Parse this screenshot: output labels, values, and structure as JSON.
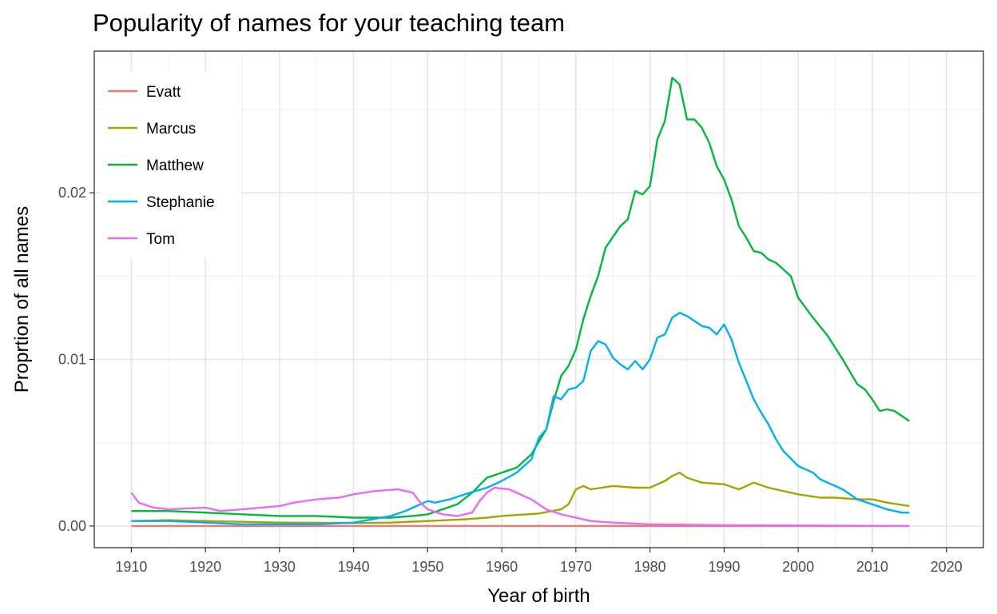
{
  "chart_data": {
    "type": "line",
    "title": "Popularity of names for your teaching team",
    "xlabel": "Year of birth",
    "ylabel": "Proprtion of all names",
    "xlim": [
      1905,
      2025
    ],
    "ylim": [
      -0.0013,
      0.0285
    ],
    "x_ticks": [
      1910,
      1920,
      1930,
      1940,
      1950,
      1960,
      1970,
      1980,
      1990,
      2000,
      2010,
      2020
    ],
    "y_ticks": [
      0.0,
      0.01,
      0.02
    ],
    "y_tick_labels": [
      "0.00",
      "0.01",
      "0.02"
    ],
    "grid": true,
    "legend_position": "top-left",
    "series": [
      {
        "name": "Evatt",
        "color": "#F8766D",
        "points": [
          [
            1910,
            0.0
          ],
          [
            2015,
            0.0
          ]
        ]
      },
      {
        "name": "Marcus",
        "color": "#A3A500",
        "points": [
          [
            1910,
            0.0003
          ],
          [
            1915,
            0.00035
          ],
          [
            1920,
            0.0003
          ],
          [
            1925,
            0.00025
          ],
          [
            1930,
            0.0002
          ],
          [
            1940,
            0.00018
          ],
          [
            1945,
            0.0002
          ],
          [
            1950,
            0.0003
          ],
          [
            1955,
            0.0004
          ],
          [
            1958,
            0.0005
          ],
          [
            1960,
            0.0006
          ],
          [
            1965,
            0.00075
          ],
          [
            1968,
            0.001
          ],
          [
            1969,
            0.0013
          ],
          [
            1970,
            0.0022
          ],
          [
            1971,
            0.0024
          ],
          [
            1972,
            0.0022
          ],
          [
            1975,
            0.0024
          ],
          [
            1978,
            0.0023
          ],
          [
            1980,
            0.0023
          ],
          [
            1982,
            0.0027
          ],
          [
            1983,
            0.003
          ],
          [
            1984,
            0.0032
          ],
          [
            1985,
            0.0029
          ],
          [
            1987,
            0.0026
          ],
          [
            1990,
            0.0025
          ],
          [
            1992,
            0.0022
          ],
          [
            1994,
            0.0026
          ],
          [
            1996,
            0.0023
          ],
          [
            2000,
            0.0019
          ],
          [
            2003,
            0.0017
          ],
          [
            2005,
            0.0017
          ],
          [
            2008,
            0.0016
          ],
          [
            2010,
            0.0016
          ],
          [
            2012,
            0.0014
          ],
          [
            2015,
            0.0012
          ]
        ]
      },
      {
        "name": "Matthew",
        "color": "#00BA38",
        "points": [
          [
            1910,
            0.0009
          ],
          [
            1915,
            0.0009
          ],
          [
            1920,
            0.0008
          ],
          [
            1925,
            0.0007
          ],
          [
            1930,
            0.0006
          ],
          [
            1935,
            0.0006
          ],
          [
            1940,
            0.0005
          ],
          [
            1945,
            0.0005
          ],
          [
            1948,
            0.0006
          ],
          [
            1950,
            0.0007
          ],
          [
            1952,
            0.001
          ],
          [
            1954,
            0.0013
          ],
          [
            1956,
            0.002
          ],
          [
            1958,
            0.0029
          ],
          [
            1960,
            0.0032
          ],
          [
            1962,
            0.0035
          ],
          [
            1964,
            0.0043
          ],
          [
            1966,
            0.0058
          ],
          [
            1967,
            0.0075
          ],
          [
            1968,
            0.009
          ],
          [
            1969,
            0.0096
          ],
          [
            1970,
            0.0106
          ],
          [
            1971,
            0.0124
          ],
          [
            1972,
            0.0138
          ],
          [
            1973,
            0.015
          ],
          [
            1974,
            0.0167
          ],
          [
            1976,
            0.018
          ],
          [
            1977,
            0.0184
          ],
          [
            1978,
            0.0201
          ],
          [
            1979,
            0.0199
          ],
          [
            1980,
            0.0204
          ],
          [
            1981,
            0.0232
          ],
          [
            1982,
            0.0243
          ],
          [
            1983,
            0.0269
          ],
          [
            1984,
            0.0265
          ],
          [
            1985,
            0.0244
          ],
          [
            1986,
            0.0244
          ],
          [
            1987,
            0.0239
          ],
          [
            1988,
            0.023
          ],
          [
            1989,
            0.0216
          ],
          [
            1990,
            0.0208
          ],
          [
            1991,
            0.0196
          ],
          [
            1992,
            0.018
          ],
          [
            1993,
            0.0173
          ],
          [
            1994,
            0.0165
          ],
          [
            1995,
            0.0164
          ],
          [
            1996,
            0.016
          ],
          [
            1997,
            0.0158
          ],
          [
            1998,
            0.0154
          ],
          [
            1999,
            0.015
          ],
          [
            2000,
            0.0137
          ],
          [
            2002,
            0.0125
          ],
          [
            2004,
            0.0114
          ],
          [
            2006,
            0.01
          ],
          [
            2008,
            0.0085
          ],
          [
            2009,
            0.0082
          ],
          [
            2010,
            0.0076
          ],
          [
            2011,
            0.0069
          ],
          [
            2012,
            0.007
          ],
          [
            2013,
            0.0069
          ],
          [
            2015,
            0.0063
          ]
        ]
      },
      {
        "name": "Stephanie",
        "color": "#00B0F6",
        "points": [
          [
            1910,
            0.0003
          ],
          [
            1915,
            0.0003
          ],
          [
            1920,
            0.0002
          ],
          [
            1925,
            0.0001
          ],
          [
            1930,
            0.0001
          ],
          [
            1935,
            0.0001
          ],
          [
            1940,
            0.0002
          ],
          [
            1945,
            0.0006
          ],
          [
            1947,
            0.0009
          ],
          [
            1950,
            0.0015
          ],
          [
            1951,
            0.0014
          ],
          [
            1953,
            0.0016
          ],
          [
            1955,
            0.0019
          ],
          [
            1958,
            0.0023
          ],
          [
            1960,
            0.0027
          ],
          [
            1962,
            0.0032
          ],
          [
            1964,
            0.004
          ],
          [
            1965,
            0.0053
          ],
          [
            1966,
            0.0058
          ],
          [
            1967,
            0.0078
          ],
          [
            1968,
            0.0076
          ],
          [
            1969,
            0.0082
          ],
          [
            1970,
            0.0083
          ],
          [
            1971,
            0.0087
          ],
          [
            1972,
            0.0105
          ],
          [
            1973,
            0.0111
          ],
          [
            1974,
            0.0109
          ],
          [
            1975,
            0.0101
          ],
          [
            1976,
            0.0097
          ],
          [
            1977,
            0.0094
          ],
          [
            1978,
            0.0099
          ],
          [
            1979,
            0.0094
          ],
          [
            1980,
            0.01
          ],
          [
            1981,
            0.0113
          ],
          [
            1982,
            0.0115
          ],
          [
            1983,
            0.0125
          ],
          [
            1984,
            0.0128
          ],
          [
            1985,
            0.0126
          ],
          [
            1987,
            0.012
          ],
          [
            1988,
            0.0119
          ],
          [
            1989,
            0.0115
          ],
          [
            1990,
            0.0121
          ],
          [
            1991,
            0.0112
          ],
          [
            1992,
            0.0098
          ],
          [
            1993,
            0.0087
          ],
          [
            1994,
            0.0076
          ],
          [
            1995,
            0.0068
          ],
          [
            1996,
            0.0061
          ],
          [
            1997,
            0.0052
          ],
          [
            1998,
            0.0045
          ],
          [
            2000,
            0.0036
          ],
          [
            2002,
            0.0032
          ],
          [
            2003,
            0.0028
          ],
          [
            2005,
            0.0024
          ],
          [
            2006,
            0.0022
          ],
          [
            2008,
            0.0016
          ],
          [
            2010,
            0.0013
          ],
          [
            2012,
            0.001
          ],
          [
            2014,
            0.0008
          ],
          [
            2015,
            0.0008
          ]
        ]
      },
      {
        "name": "Tom",
        "color": "#E76BF3",
        "points": [
          [
            1910,
            0.002
          ],
          [
            1911,
            0.0014
          ],
          [
            1913,
            0.0011
          ],
          [
            1915,
            0.001
          ],
          [
            1920,
            0.0011
          ],
          [
            1922,
            0.0009
          ],
          [
            1925,
            0.001
          ],
          [
            1930,
            0.0012
          ],
          [
            1932,
            0.0014
          ],
          [
            1935,
            0.0016
          ],
          [
            1938,
            0.0017
          ],
          [
            1940,
            0.0019
          ],
          [
            1943,
            0.0021
          ],
          [
            1946,
            0.0022
          ],
          [
            1948,
            0.002
          ],
          [
            1949,
            0.0014
          ],
          [
            1950,
            0.001
          ],
          [
            1952,
            0.0007
          ],
          [
            1954,
            0.0006
          ],
          [
            1956,
            0.0008
          ],
          [
            1957,
            0.0015
          ],
          [
            1958,
            0.002
          ],
          [
            1959,
            0.0023
          ],
          [
            1961,
            0.0022
          ],
          [
            1964,
            0.0016
          ],
          [
            1966,
            0.001
          ],
          [
            1968,
            0.0007
          ],
          [
            1970,
            0.0005
          ],
          [
            1972,
            0.0003
          ],
          [
            1975,
            0.0002
          ],
          [
            1980,
            0.0001
          ],
          [
            1990,
            5e-05
          ],
          [
            2015,
            0.0
          ]
        ]
      }
    ]
  }
}
